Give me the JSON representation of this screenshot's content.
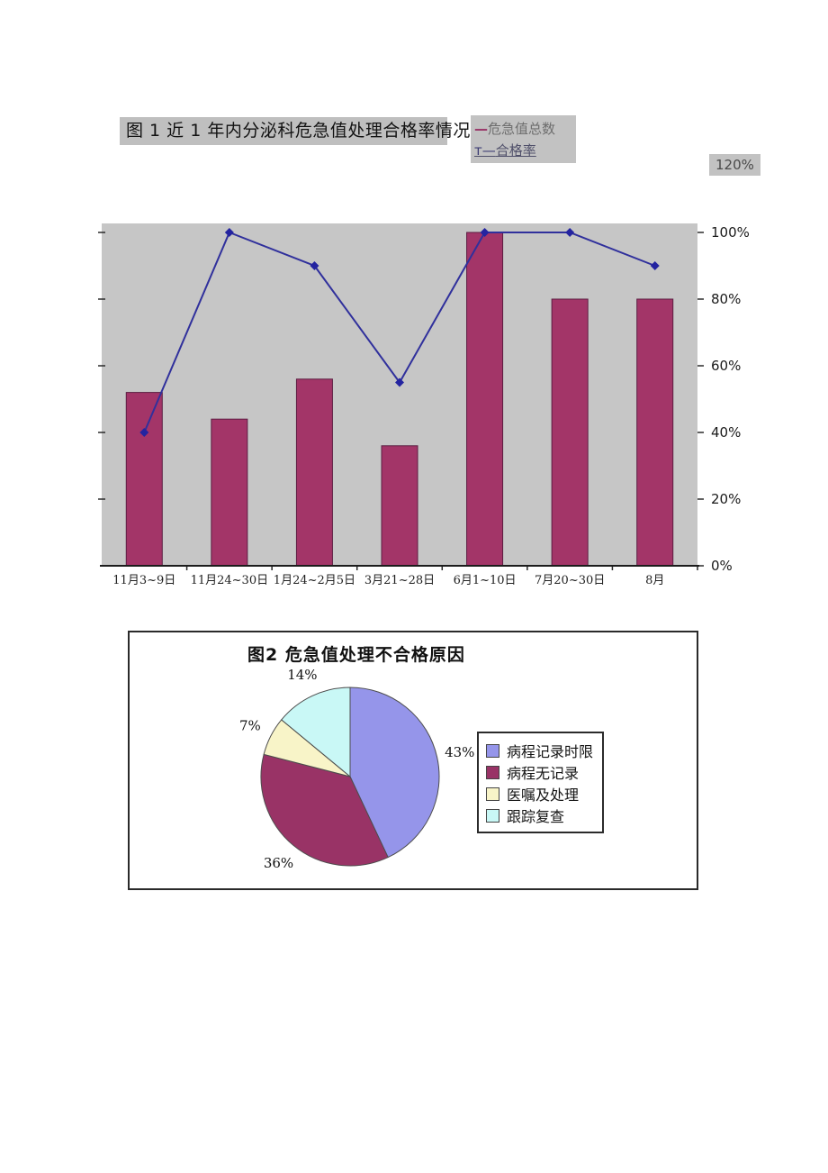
{
  "figure1": {
    "overflow_tick_label": "120%",
    "legend": {
      "series1_marker": "—",
      "series2_marker": "т—"
    }
  },
  "chart_data": [
    {
      "type": "combo-bar-line",
      "title": "图 1 近 1 年内分泌科危急值处理合格率情况",
      "categories": [
        "11月3~9日",
        "11月24~30日",
        "1月24~2月5日",
        "3月21~28日",
        "6月1~10日",
        "7月20~30日",
        "8月"
      ],
      "series": [
        {
          "name": "危急值总数",
          "type": "bar",
          "color": "#a33568",
          "values": [
            52,
            44,
            56,
            36,
            100,
            80,
            80
          ]
        },
        {
          "name": "合格率",
          "type": "line",
          "color": "#30309c",
          "values": [
            40,
            100,
            90,
            55,
            100,
            100,
            90
          ]
        }
      ],
      "ylim": [
        0,
        100
      ],
      "yticks": [
        "0%",
        "20%",
        "40%",
        "60%",
        "80%",
        "100%"
      ],
      "overflow_tick": "120%",
      "plot_bg": "#c6c6c6",
      "grid": false,
      "legend_position": "top-right-outside",
      "value_axis_side": "right"
    },
    {
      "type": "pie",
      "title": "图2 危急值处理不合格原因",
      "labels": [
        "病程记录时限",
        "病程无记录",
        "医嘱及处理",
        "跟踪复查"
      ],
      "values": [
        43,
        36,
        7,
        14
      ],
      "data_labels": [
        "43%",
        "36%",
        "7%",
        "14%"
      ],
      "colors": [
        "#9595ea",
        "#993366",
        "#f8f4c8",
        "#c9f8f6"
      ],
      "legend_position": "right",
      "start_angle_deg": 0,
      "direction": "clockwise"
    }
  ]
}
